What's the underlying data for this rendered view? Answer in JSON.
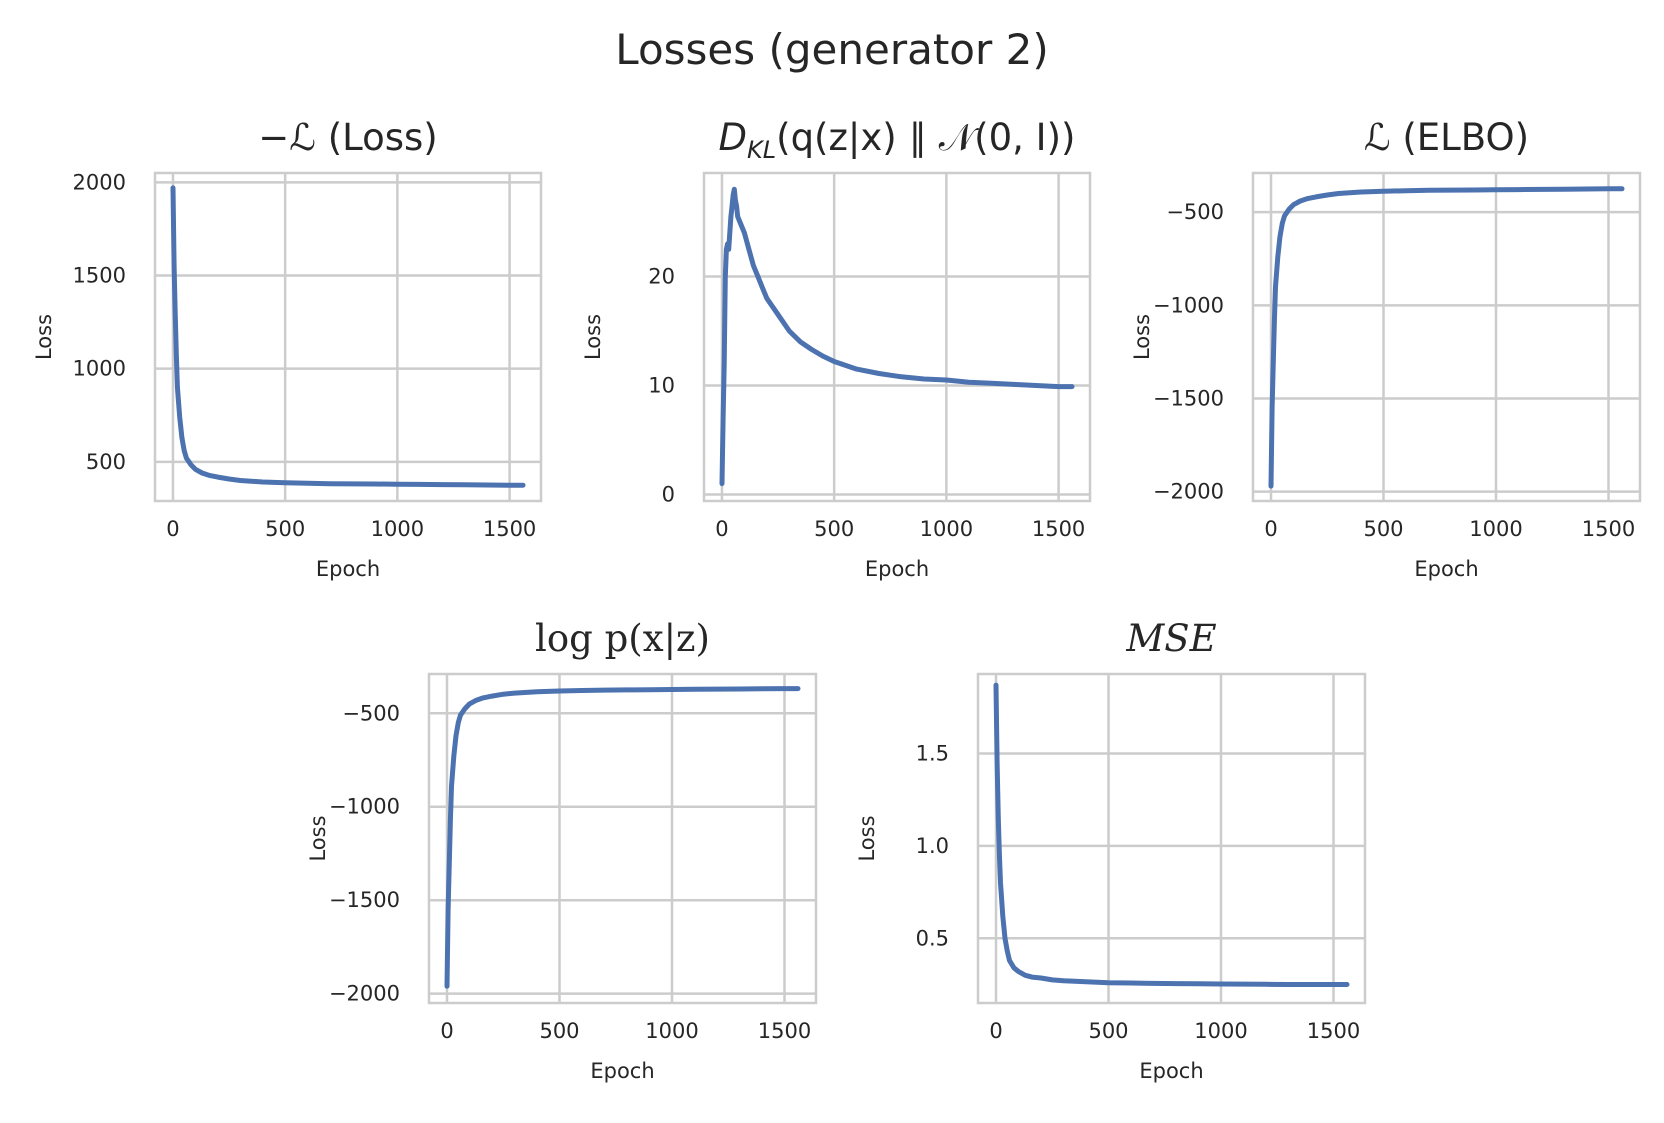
{
  "figure": {
    "title": "Losses (generator 2)"
  },
  "chart_data": [
    {
      "type": "line",
      "title": "−ℒ (Loss)",
      "xlabel": "Epoch",
      "ylabel": "Loss",
      "xlim": [
        -80,
        1640
      ],
      "ylim": [
        290,
        2050
      ],
      "xticks": [
        0,
        500,
        1000,
        1500
      ],
      "xtick_labels": [
        "0",
        "500",
        "1000",
        "1500"
      ],
      "yticks": [
        500,
        1000,
        1500,
        2000
      ],
      "ytick_labels": [
        "500",
        "1000",
        "1500",
        "2000"
      ],
      "grid": true,
      "series": [
        {
          "color": "#4c72b0",
          "x": [
            0,
            5,
            10,
            15,
            20,
            30,
            40,
            50,
            60,
            80,
            100,
            130,
            160,
            200,
            250,
            300,
            400,
            500,
            600,
            700,
            800,
            900,
            1000,
            1100,
            1200,
            1300,
            1400,
            1500,
            1560
          ],
          "y": [
            1970,
            1550,
            1300,
            1080,
            900,
            740,
            630,
            560,
            520,
            485,
            460,
            440,
            428,
            418,
            408,
            400,
            392,
            388,
            385,
            383,
            382,
            381,
            380,
            379,
            378,
            377,
            376,
            375,
            375
          ]
        }
      ]
    },
    {
      "type": "line",
      "title": "D_KL(q(z|x) ∥ 𝒩(0, I))",
      "title_parts": {
        "d": "D",
        "sub": "KL",
        "rest": "(q(z|x) ∥ 𝒩(0, I))"
      },
      "xlabel": "Epoch",
      "ylabel": "Loss",
      "xlim": [
        -80,
        1640
      ],
      "ylim": [
        -0.6,
        29.5
      ],
      "xticks": [
        0,
        500,
        1000,
        1500
      ],
      "xtick_labels": [
        "0",
        "500",
        "1000",
        "1500"
      ],
      "yticks": [
        0,
        10,
        20
      ],
      "ytick_labels": [
        "0",
        "10",
        "20"
      ],
      "grid": true,
      "series": [
        {
          "color": "#4c72b0",
          "x": [
            0,
            5,
            10,
            15,
            20,
            25,
            30,
            35,
            40,
            45,
            50,
            55,
            60,
            65,
            70,
            80,
            90,
            100,
            120,
            140,
            160,
            180,
            200,
            250,
            300,
            350,
            400,
            450,
            500,
            600,
            700,
            800,
            900,
            1000,
            1100,
            1200,
            1300,
            1400,
            1500,
            1560
          ],
          "y": [
            1,
            7,
            12,
            20,
            22.5,
            23,
            22.5,
            24,
            25.5,
            26.5,
            27.5,
            28,
            27,
            26.5,
            25.5,
            25,
            24.5,
            24,
            22.5,
            21,
            20,
            19,
            18,
            16.5,
            15,
            14,
            13.3,
            12.7,
            12.2,
            11.5,
            11.1,
            10.8,
            10.6,
            10.5,
            10.3,
            10.2,
            10.1,
            10.0,
            9.9,
            9.9
          ]
        }
      ]
    },
    {
      "type": "line",
      "title": "ℒ (ELBO)",
      "xlabel": "Epoch",
      "ylabel": "Loss",
      "xlim": [
        -80,
        1640
      ],
      "ylim": [
        -2050,
        -290
      ],
      "xticks": [
        0,
        500,
        1000,
        1500
      ],
      "xtick_labels": [
        "0",
        "500",
        "1000",
        "1500"
      ],
      "yticks": [
        -2000,
        -1500,
        -1000,
        -500
      ],
      "ytick_labels": [
        "−2000",
        "−1500",
        "−1000",
        "−500"
      ],
      "grid": true,
      "series": [
        {
          "color": "#4c72b0",
          "x": [
            0,
            5,
            10,
            15,
            20,
            30,
            40,
            50,
            60,
            80,
            100,
            130,
            160,
            200,
            250,
            300,
            400,
            500,
            600,
            700,
            800,
            900,
            1000,
            1100,
            1200,
            1300,
            1400,
            1500,
            1560
          ],
          "y": [
            -1970,
            -1550,
            -1300,
            -1080,
            -900,
            -740,
            -630,
            -560,
            -520,
            -485,
            -460,
            -440,
            -428,
            -418,
            -408,
            -400,
            -392,
            -388,
            -385,
            -383,
            -382,
            -381,
            -380,
            -379,
            -378,
            -377,
            -376,
            -375,
            -375
          ]
        }
      ]
    },
    {
      "type": "line",
      "title": "log p(x|z)",
      "xlabel": "Epoch",
      "ylabel": "Loss",
      "xlim": [
        -80,
        1640
      ],
      "ylim": [
        -2050,
        -290
      ],
      "xticks": [
        0,
        500,
        1000,
        1500
      ],
      "xtick_labels": [
        "0",
        "500",
        "1000",
        "1500"
      ],
      "yticks": [
        -2000,
        -1500,
        -1000,
        -500
      ],
      "ytick_labels": [
        "−2000",
        "−1500",
        "−1000",
        "−500"
      ],
      "grid": true,
      "series": [
        {
          "color": "#4c72b0",
          "x": [
            0,
            5,
            10,
            15,
            20,
            30,
            40,
            50,
            60,
            80,
            100,
            130,
            160,
            200,
            250,
            300,
            400,
            500,
            600,
            700,
            800,
            900,
            1000,
            1100,
            1200,
            1300,
            1400,
            1500,
            1560
          ],
          "y": [
            -1960,
            -1550,
            -1300,
            -1070,
            -890,
            -730,
            -620,
            -550,
            -510,
            -475,
            -450,
            -430,
            -418,
            -408,
            -398,
            -392,
            -385,
            -381,
            -378,
            -376,
            -375,
            -374,
            -373,
            -372,
            -371,
            -370,
            -369,
            -368,
            -368
          ]
        }
      ]
    },
    {
      "type": "line",
      "title": "MSE",
      "xlabel": "Epoch",
      "ylabel": "Loss",
      "xlim": [
        -80,
        1640
      ],
      "ylim": [
        0.15,
        1.93
      ],
      "xticks": [
        0,
        500,
        1000,
        1500
      ],
      "xtick_labels": [
        "0",
        "500",
        "1000",
        "1500"
      ],
      "yticks": [
        0.5,
        1.0,
        1.5
      ],
      "ytick_labels": [
        "0.5",
        "1.0",
        "1.5"
      ],
      "grid": true,
      "series": [
        {
          "color": "#4c72b0",
          "x": [
            0,
            5,
            10,
            15,
            20,
            30,
            40,
            50,
            60,
            80,
            100,
            130,
            160,
            200,
            250,
            300,
            400,
            500,
            600,
            700,
            800,
            900,
            1000,
            1100,
            1200,
            1300,
            1400,
            1500,
            1560
          ],
          "y": [
            1.87,
            1.45,
            1.15,
            0.95,
            0.8,
            0.62,
            0.5,
            0.43,
            0.38,
            0.34,
            0.32,
            0.3,
            0.29,
            0.285,
            0.275,
            0.27,
            0.265,
            0.26,
            0.258,
            0.256,
            0.255,
            0.254,
            0.253,
            0.252,
            0.251,
            0.25,
            0.25,
            0.25,
            0.25
          ]
        }
      ]
    }
  ]
}
